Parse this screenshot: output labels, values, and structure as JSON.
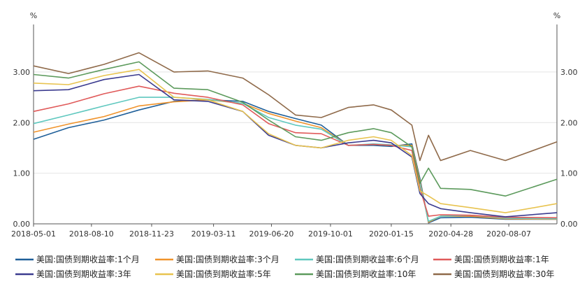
{
  "chart_data": {
    "type": "line",
    "title": "",
    "xlabel": "",
    "ylabel": "%",
    "ylabel_right": "%",
    "ylim": [
      0,
      3.8
    ],
    "grid": true,
    "legend_placement": "bottom",
    "x_ticks": [
      "2018-05-01",
      "2018-08-10",
      "2018-11-23",
      "2019-03-11",
      "2019-06-20",
      "2019-10-01",
      "2020-01-15",
      "2020-04-28",
      "2020-08-07"
    ],
    "y_ticks": [
      "0.00",
      "1.00",
      "2.00",
      "3.00"
    ],
    "x_range": [
      "2018-05-01",
      "2020-10-30"
    ],
    "series": [
      {
        "name": "美国:国债到期收益率:1个月",
        "color": "#1f5f99",
        "points": [
          [
            "2018-05-01",
            1.67
          ],
          [
            "2018-07-01",
            1.9
          ],
          [
            "2018-09-01",
            2.05
          ],
          [
            "2018-11-01",
            2.25
          ],
          [
            "2019-01-01",
            2.42
          ],
          [
            "2019-03-01",
            2.45
          ],
          [
            "2019-05-01",
            2.42
          ],
          [
            "2019-06-15",
            2.22
          ],
          [
            "2019-08-01",
            2.08
          ],
          [
            "2019-09-15",
            1.95
          ],
          [
            "2019-11-01",
            1.55
          ],
          [
            "2019-12-15",
            1.55
          ],
          [
            "2020-01-15",
            1.53
          ],
          [
            "2020-02-20",
            1.58
          ],
          [
            "2020-03-05",
            0.9
          ],
          [
            "2020-03-20",
            0.02
          ],
          [
            "2020-04-10",
            0.12
          ],
          [
            "2020-06-01",
            0.13
          ],
          [
            "2020-08-01",
            0.09
          ],
          [
            "2020-10-30",
            0.09
          ]
        ]
      },
      {
        "name": "美国:国债到期收益率:3个月",
        "color": "#f0932b",
        "points": [
          [
            "2018-05-01",
            1.81
          ],
          [
            "2018-07-01",
            1.97
          ],
          [
            "2018-09-01",
            2.12
          ],
          [
            "2018-11-01",
            2.33
          ],
          [
            "2019-01-01",
            2.41
          ],
          [
            "2019-03-01",
            2.45
          ],
          [
            "2019-05-01",
            2.38
          ],
          [
            "2019-06-15",
            2.18
          ],
          [
            "2019-08-01",
            2.03
          ],
          [
            "2019-09-15",
            1.9
          ],
          [
            "2019-11-01",
            1.55
          ],
          [
            "2019-12-15",
            1.57
          ],
          [
            "2020-01-15",
            1.55
          ],
          [
            "2020-02-20",
            1.55
          ],
          [
            "2020-03-05",
            0.85
          ],
          [
            "2020-03-20",
            0.03
          ],
          [
            "2020-04-10",
            0.15
          ],
          [
            "2020-06-01",
            0.15
          ],
          [
            "2020-08-01",
            0.1
          ],
          [
            "2020-10-30",
            0.09
          ]
        ]
      },
      {
        "name": "美国:国债到期收益率:6个月",
        "color": "#5fc8bf",
        "points": [
          [
            "2018-05-01",
            1.98
          ],
          [
            "2018-07-01",
            2.15
          ],
          [
            "2018-09-01",
            2.33
          ],
          [
            "2018-11-01",
            2.5
          ],
          [
            "2019-01-01",
            2.5
          ],
          [
            "2019-03-01",
            2.46
          ],
          [
            "2019-05-01",
            2.38
          ],
          [
            "2019-06-15",
            2.1
          ],
          [
            "2019-08-01",
            1.95
          ],
          [
            "2019-09-15",
            1.87
          ],
          [
            "2019-11-01",
            1.55
          ],
          [
            "2019-12-15",
            1.58
          ],
          [
            "2020-01-15",
            1.56
          ],
          [
            "2020-02-20",
            1.52
          ],
          [
            "2020-03-05",
            0.8
          ],
          [
            "2020-03-20",
            0.05
          ],
          [
            "2020-04-10",
            0.15
          ],
          [
            "2020-06-01",
            0.17
          ],
          [
            "2020-08-01",
            0.11
          ],
          [
            "2020-10-30",
            0.1
          ]
        ]
      },
      {
        "name": "美国:国债到期收益率:1年",
        "color": "#e05a5a",
        "points": [
          [
            "2018-05-01",
            2.22
          ],
          [
            "2018-07-01",
            2.37
          ],
          [
            "2018-09-01",
            2.57
          ],
          [
            "2018-11-01",
            2.72
          ],
          [
            "2019-01-01",
            2.58
          ],
          [
            "2019-03-01",
            2.5
          ],
          [
            "2019-05-01",
            2.35
          ],
          [
            "2019-06-15",
            1.98
          ],
          [
            "2019-08-01",
            1.8
          ],
          [
            "2019-09-15",
            1.78
          ],
          [
            "2019-11-01",
            1.55
          ],
          [
            "2019-12-15",
            1.57
          ],
          [
            "2020-01-15",
            1.55
          ],
          [
            "2020-02-20",
            1.45
          ],
          [
            "2020-03-05",
            0.7
          ],
          [
            "2020-03-20",
            0.15
          ],
          [
            "2020-04-10",
            0.18
          ],
          [
            "2020-06-01",
            0.17
          ],
          [
            "2020-08-01",
            0.13
          ],
          [
            "2020-10-30",
            0.12
          ]
        ]
      },
      {
        "name": "美国:国债到期收益率:3年",
        "color": "#3b3b8f",
        "points": [
          [
            "2018-05-01",
            2.63
          ],
          [
            "2018-07-01",
            2.65
          ],
          [
            "2018-09-01",
            2.85
          ],
          [
            "2018-11-01",
            2.95
          ],
          [
            "2019-01-01",
            2.45
          ],
          [
            "2019-03-01",
            2.42
          ],
          [
            "2019-05-01",
            2.22
          ],
          [
            "2019-06-15",
            1.75
          ],
          [
            "2019-08-01",
            1.55
          ],
          [
            "2019-09-15",
            1.5
          ],
          [
            "2019-11-01",
            1.6
          ],
          [
            "2019-12-15",
            1.65
          ],
          [
            "2020-01-15",
            1.6
          ],
          [
            "2020-02-20",
            1.32
          ],
          [
            "2020-03-05",
            0.6
          ],
          [
            "2020-03-20",
            0.4
          ],
          [
            "2020-04-10",
            0.3
          ],
          [
            "2020-06-01",
            0.22
          ],
          [
            "2020-08-01",
            0.14
          ],
          [
            "2020-10-30",
            0.22
          ]
        ]
      },
      {
        "name": "美国:国债到期收益率:5年",
        "color": "#e8c34f",
        "points": [
          [
            "2018-05-01",
            2.78
          ],
          [
            "2018-07-01",
            2.75
          ],
          [
            "2018-09-01",
            2.93
          ],
          [
            "2018-11-01",
            3.05
          ],
          [
            "2019-01-01",
            2.5
          ],
          [
            "2019-03-01",
            2.45
          ],
          [
            "2019-05-01",
            2.22
          ],
          [
            "2019-06-15",
            1.78
          ],
          [
            "2019-08-01",
            1.55
          ],
          [
            "2019-09-15",
            1.5
          ],
          [
            "2019-11-01",
            1.65
          ],
          [
            "2019-12-15",
            1.72
          ],
          [
            "2020-01-15",
            1.65
          ],
          [
            "2020-02-20",
            1.35
          ],
          [
            "2020-03-05",
            0.65
          ],
          [
            "2020-03-20",
            0.55
          ],
          [
            "2020-04-10",
            0.4
          ],
          [
            "2020-06-01",
            0.32
          ],
          [
            "2020-08-01",
            0.22
          ],
          [
            "2020-10-30",
            0.4
          ]
        ]
      },
      {
        "name": "美国:国债到期收益率:10年",
        "color": "#5c9a5c",
        "points": [
          [
            "2018-05-01",
            2.95
          ],
          [
            "2018-07-01",
            2.88
          ],
          [
            "2018-09-01",
            3.05
          ],
          [
            "2018-11-01",
            3.2
          ],
          [
            "2019-01-01",
            2.68
          ],
          [
            "2019-03-01",
            2.65
          ],
          [
            "2019-05-01",
            2.4
          ],
          [
            "2019-06-15",
            2.05
          ],
          [
            "2019-08-01",
            1.72
          ],
          [
            "2019-09-15",
            1.65
          ],
          [
            "2019-11-01",
            1.8
          ],
          [
            "2019-12-15",
            1.88
          ],
          [
            "2020-01-15",
            1.8
          ],
          [
            "2020-02-20",
            1.52
          ],
          [
            "2020-03-05",
            0.8
          ],
          [
            "2020-03-20",
            1.1
          ],
          [
            "2020-04-10",
            0.7
          ],
          [
            "2020-06-01",
            0.68
          ],
          [
            "2020-08-01",
            0.55
          ],
          [
            "2020-10-30",
            0.88
          ]
        ]
      },
      {
        "name": "美国:国债到期收益率:30年",
        "color": "#8f6a4a",
        "points": [
          [
            "2018-05-01",
            3.12
          ],
          [
            "2018-07-01",
            2.97
          ],
          [
            "2018-09-01",
            3.15
          ],
          [
            "2018-11-01",
            3.38
          ],
          [
            "2019-01-01",
            3.0
          ],
          [
            "2019-03-01",
            3.02
          ],
          [
            "2019-05-01",
            2.88
          ],
          [
            "2019-06-15",
            2.55
          ],
          [
            "2019-08-01",
            2.15
          ],
          [
            "2019-09-15",
            2.1
          ],
          [
            "2019-11-01",
            2.3
          ],
          [
            "2019-12-15",
            2.35
          ],
          [
            "2020-01-15",
            2.25
          ],
          [
            "2020-02-20",
            1.95
          ],
          [
            "2020-03-05",
            1.25
          ],
          [
            "2020-03-20",
            1.75
          ],
          [
            "2020-04-10",
            1.25
          ],
          [
            "2020-06-01",
            1.45
          ],
          [
            "2020-08-01",
            1.25
          ],
          [
            "2020-10-30",
            1.62
          ]
        ]
      }
    ]
  }
}
